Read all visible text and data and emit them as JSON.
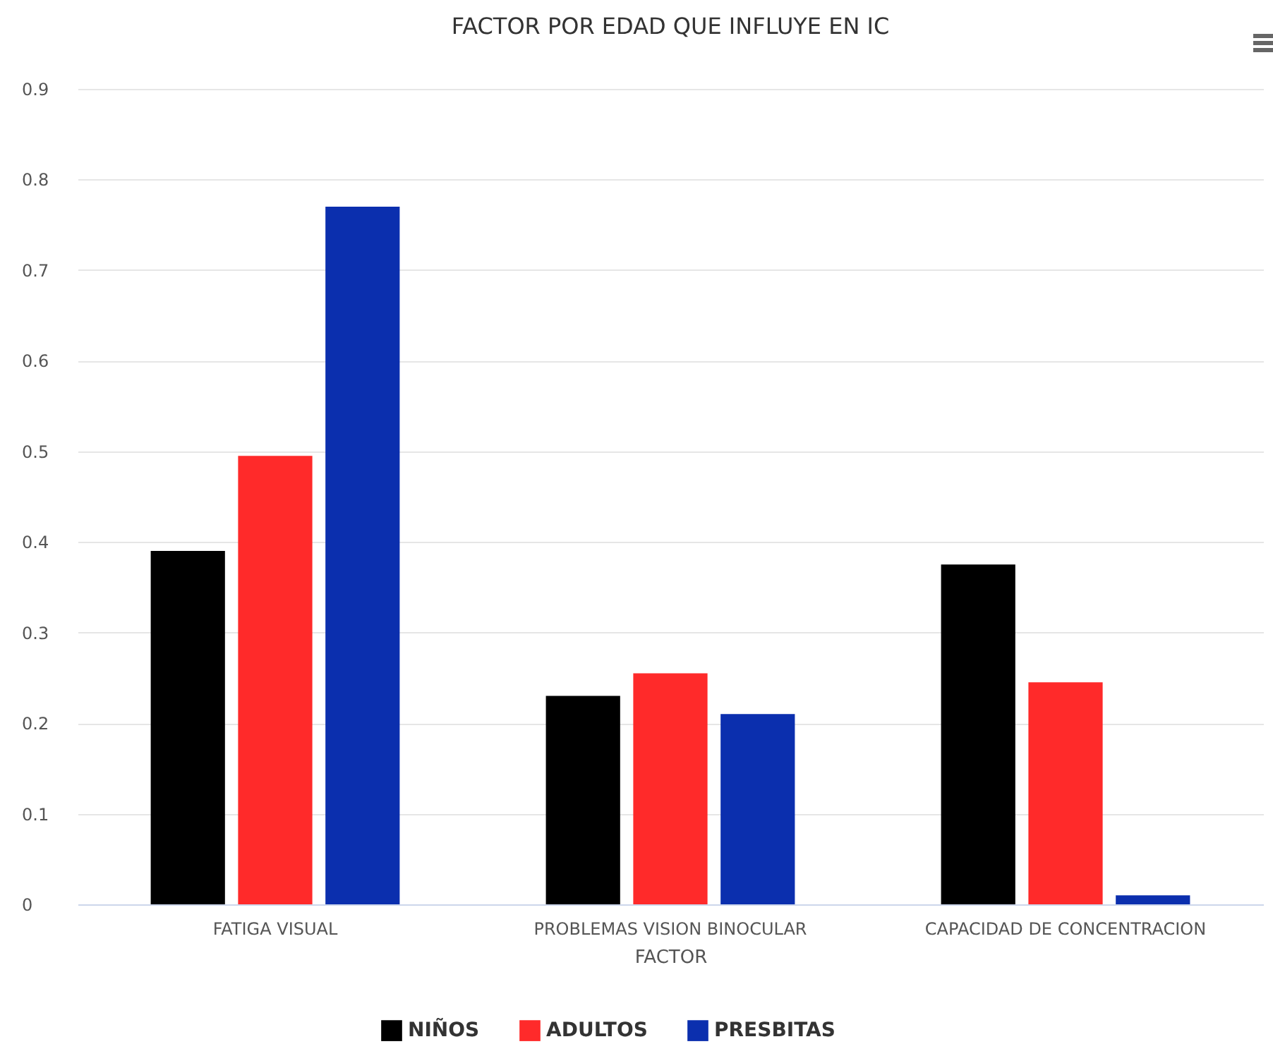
{
  "chart_data": {
    "type": "bar",
    "title": "FACTOR POR EDAD QUE INFLUYE EN IC",
    "xlabel": "FACTOR",
    "categories": [
      "FATIGA VISUAL",
      "PROBLEMAS VISION BINOCULAR",
      "CAPACIDAD DE CONCENTRACION"
    ],
    "series": [
      {
        "name": "NIÑOS",
        "color": "#000000",
        "values": [
          0.39,
          0.23,
          0.375
        ]
      },
      {
        "name": "ADULTOS",
        "color": "#ff2a2a",
        "values": [
          0.495,
          0.255,
          0.245
        ]
      },
      {
        "name": "PRESBITAS",
        "color": "#0b2fae",
        "values": [
          0.77,
          0.21,
          0.01
        ]
      }
    ],
    "ylim": [
      0,
      0.9
    ],
    "yticks": [
      0,
      0.1,
      0.2,
      0.3,
      0.4,
      0.5,
      0.6,
      0.7,
      0.8,
      0.9
    ],
    "grid": "y",
    "legend": "bottom"
  }
}
